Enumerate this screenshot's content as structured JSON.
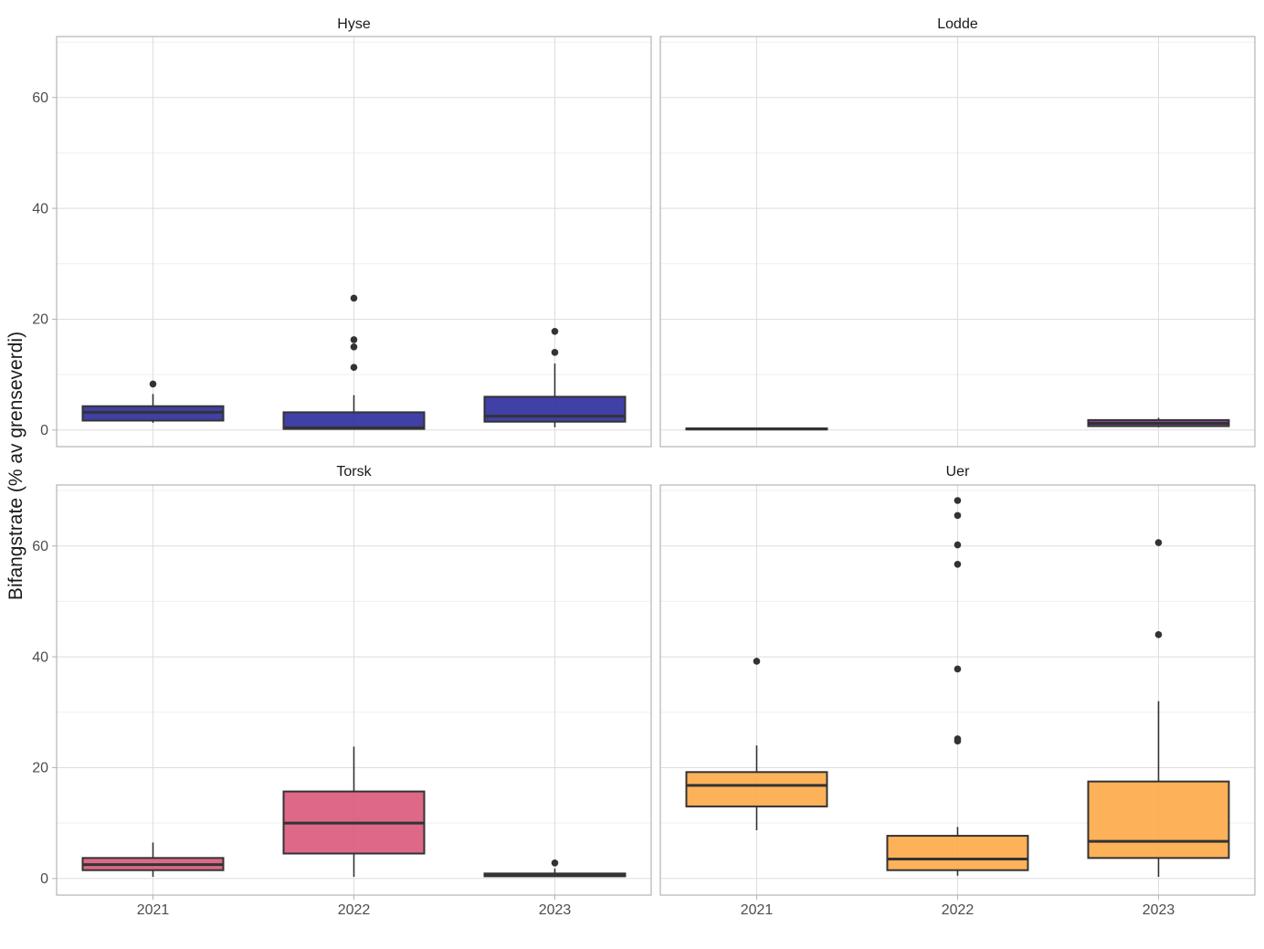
{
  "chart_data": {
    "type": "boxplot",
    "facet_layout": "2x2",
    "ylabel": "Bifangstrate (% av grenseverdi)",
    "xlabel": "",
    "categories": [
      "2021",
      "2022",
      "2023"
    ],
    "ylim": [
      -3,
      71
    ],
    "yticks": [
      0,
      20,
      40,
      60
    ],
    "ytick_labels": [
      "0",
      "20",
      "40",
      "60"
    ],
    "grid": true,
    "panels": [
      {
        "title": "Hyse",
        "fill": "#2b2b9c",
        "boxes": [
          {
            "category": "2021",
            "whisker_low": 1.3,
            "q1": 1.7,
            "median": 3.2,
            "q3": 4.3,
            "whisker_high": 6.5,
            "outliers": [
              8.3
            ]
          },
          {
            "category": "2022",
            "whisker_low": 0.1,
            "q1": 0.2,
            "median": 0.4,
            "q3": 3.2,
            "whisker_high": 6.3,
            "outliers": [
              23.8,
              16.3,
              15.0,
              11.3
            ]
          },
          {
            "category": "2023",
            "whisker_low": 0.5,
            "q1": 1.5,
            "median": 2.5,
            "q3": 6.0,
            "whisker_high": 12.0,
            "outliers": [
              17.8,
              14.0
            ]
          }
        ]
      },
      {
        "title": "Lodde",
        "fill": "#7b3294",
        "boxes": [
          {
            "category": "2021",
            "whisker_low": 0.1,
            "q1": 0.1,
            "median": 0.2,
            "q3": 0.3,
            "whisker_high": 0.3,
            "outliers": []
          },
          {
            "category": "2023",
            "whisker_low": 0.5,
            "q1": 0.7,
            "median": 1.2,
            "q3": 1.8,
            "whisker_high": 2.2,
            "outliers": []
          }
        ]
      },
      {
        "title": "Torsk",
        "fill": "#d9587a",
        "boxes": [
          {
            "category": "2021",
            "whisker_low": 0.3,
            "q1": 1.5,
            "median": 2.5,
            "q3": 3.7,
            "whisker_high": 6.5,
            "outliers": []
          },
          {
            "category": "2022",
            "whisker_low": 0.3,
            "q1": 4.5,
            "median": 10.0,
            "q3": 15.7,
            "whisker_high": 23.8,
            "outliers": []
          },
          {
            "category": "2023",
            "whisker_low": 0.3,
            "q1": 0.4,
            "median": 0.6,
            "q3": 0.9,
            "whisker_high": 1.8,
            "outliers": [
              2.8
            ]
          }
        ]
      },
      {
        "title": "Uer",
        "fill": "#fdaa48",
        "boxes": [
          {
            "category": "2021",
            "whisker_low": 8.7,
            "q1": 13.0,
            "median": 16.8,
            "q3": 19.2,
            "whisker_high": 24.0,
            "outliers": [
              39.2
            ]
          },
          {
            "category": "2022",
            "whisker_low": 0.5,
            "q1": 1.5,
            "median": 3.5,
            "q3": 7.7,
            "whisker_high": 9.3,
            "outliers": [
              68.2,
              65.5,
              60.2,
              56.7,
              37.8,
              25.2,
              24.8
            ]
          },
          {
            "category": "2023",
            "whisker_low": 0.3,
            "q1": 3.7,
            "median": 6.7,
            "q3": 17.5,
            "whisker_high": 32.0,
            "outliers": [
              60.6,
              44.0
            ]
          }
        ]
      }
    ]
  },
  "colors": {
    "box_line": "#333333",
    "outlier": "#333333",
    "grid_major": "#dedede",
    "grid_minor": "#efefef",
    "panel_border": "#b3b3b3"
  }
}
